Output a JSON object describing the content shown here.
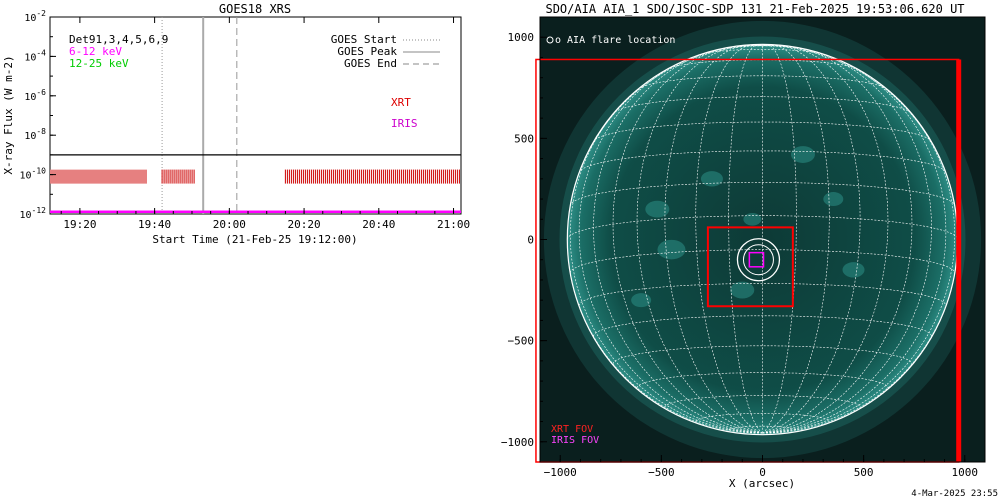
{
  "chart_data": [
    {
      "type": "line",
      "title": "GOES18 XRS",
      "xlabel": "Start Time (21-Feb-25 19:12:00)",
      "ylabel": "X-ray Flux (W m-2)",
      "y_scale": "log",
      "ylim": [
        1e-12,
        0.01
      ],
      "xlim": [
        "19:12",
        "21:02"
      ],
      "x_ticks": [
        "19:20",
        "19:40",
        "20:00",
        "20:20",
        "20:40",
        "21:00"
      ],
      "y_ticks": [
        "10-12",
        "10-10",
        "10-8",
        "10-6",
        "10-4",
        "10-2"
      ],
      "legend_left": [
        {
          "label": "Det91,3,4,5,6,9",
          "color": "#000000"
        },
        {
          "label": "6-12 keV",
          "color": "#ff00ff"
        },
        {
          "label": "12-25 keV",
          "color": "#00cc00"
        }
      ],
      "legend_right": [
        {
          "label": "GOES Start",
          "style": "dotted"
        },
        {
          "label": "GOES Peak",
          "style": "solid"
        },
        {
          "label": "GOES End",
          "style": "dashed"
        }
      ],
      "instrument_labels": [
        {
          "label": "XRT",
          "color": "#dd0000"
        },
        {
          "label": "IRIS",
          "color": "#cc00cc"
        }
      ],
      "events": {
        "start": "19:42",
        "peak": "19:53",
        "end": "20:02"
      },
      "series": [
        {
          "name": "GOES",
          "color": "#000000",
          "value": 1e-09
        },
        {
          "name": "IRIS",
          "color": "#ff00ff",
          "value": 1.3e-12
        }
      ],
      "xrt_observations": [
        {
          "from": "19:12",
          "to": "19:38"
        },
        {
          "from": "19:42",
          "to": "19:51"
        },
        {
          "from": "20:15",
          "to": "21:02"
        }
      ]
    },
    {
      "type": "scatter",
      "title": "SDO/AIA AIA_1 SDO/JSOC-SDP 131 21-Feb-2025 19:53:06.620 UT",
      "xlabel": "X (arcsec)",
      "ylabel": "",
      "xlim": [
        -1100,
        1100
      ],
      "ylim": [
        -1100,
        1100
      ],
      "x_ticks": [
        "-1000",
        "-500",
        "0",
        "500",
        "1000"
      ],
      "y_ticks": [
        "-1000",
        "-500",
        "0",
        "500",
        "1000"
      ],
      "legend": "o AIA flare location",
      "fov_labels": [
        {
          "label": "XRT FOV",
          "color": "#dd0000"
        },
        {
          "label": "IRIS FOV",
          "color": "#cc00cc"
        }
      ],
      "flare_location": {
        "x": -20,
        "y": -100
      },
      "xrt_fov": [
        {
          "x0": -270,
          "y0": -330,
          "x1": 150,
          "y1": 60
        },
        {
          "x0": -1120,
          "y0": -1100,
          "x1": 970,
          "y1": 890
        }
      ],
      "iris_fov": {
        "x0": -65,
        "y0": -135,
        "x1": 5,
        "y1": -65
      },
      "grid": true
    }
  ],
  "footer": {
    "timestamp": "4-Mar-2025 23:55"
  }
}
